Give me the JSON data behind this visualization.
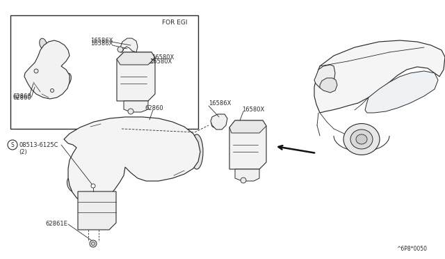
{
  "bg_color": "#ffffff",
  "line_color": "#2a2a2a",
  "fig_width": 6.4,
  "fig_height": 3.72,
  "dpi": 100,
  "labels": {
    "for_egi": "FOR EGI",
    "inset_16586X": "16586X",
    "inset_16580X": "16580X",
    "inset_62860": "62860",
    "main_62860": "62860",
    "main_16586X": "16586X",
    "main_16580X": "16580X",
    "screw": "08513-6125C",
    "screw2": "(2)",
    "bracket": "62861E",
    "ref": "^6P8*0050"
  },
  "font_size": 6.5,
  "font_size_small": 5.5
}
